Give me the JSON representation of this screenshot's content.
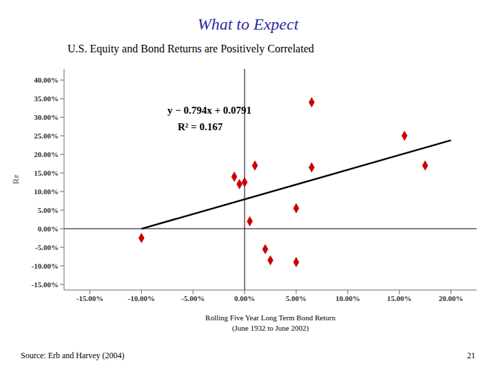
{
  "chart_data": {
    "type": "scatter",
    "title": "What to Expect",
    "title_color": "#2b2b9e",
    "subtitle": "U.S. Equity and Bond Returns are Positively Correlated",
    "x_label": [
      "Rolling Five Year Long Term Bond Return",
      "(June 1932 to June 2002)"
    ],
    "y_label": "Re",
    "source": "Source: Erb and Harvey (2004)",
    "page_number": "21",
    "annotations": [
      "y − 0.794x + 0.0791",
      "R² = 0.167"
    ],
    "points": {
      "x": [
        -0.1,
        -0.01,
        -0.005,
        0.0,
        0.005,
        0.01,
        0.02,
        0.025,
        0.05,
        0.05,
        0.065,
        0.065,
        0.155,
        0.175
      ],
      "values": [
        -0.025,
        0.14,
        0.12,
        0.125,
        0.02,
        0.17,
        -0.055,
        -0.085,
        0.055,
        -0.09,
        0.34,
        0.165,
        0.25,
        0.17
      ],
      "color": "#cc0000",
      "marker": "diamond"
    },
    "regression_line": {
      "x": [
        -0.1,
        0.2
      ],
      "values": [
        -0.0003,
        0.2379
      ],
      "color": "#000000",
      "line_style": "solid"
    },
    "reference_lines": {
      "x": [
        0
      ],
      "y": [
        0
      ]
    },
    "xlim": [
      -0.175,
      0.225
    ],
    "ylim": [
      -0.165,
      0.43
    ],
    "xticks": [
      {
        "value": -0.15,
        "label": "-15.00%"
      },
      {
        "value": -0.1,
        "label": "-10.00%"
      },
      {
        "value": -0.05,
        "label": "-5.00%"
      },
      {
        "value": 0.0,
        "label": "0.00%"
      },
      {
        "value": 0.05,
        "label": "5.00%"
      },
      {
        "value": 0.1,
        "label": "10.00%"
      },
      {
        "value": 0.15,
        "label": "15.00%"
      },
      {
        "value": 0.2,
        "label": "20.00%"
      }
    ],
    "yticks": [
      {
        "value": -0.15,
        "label": "-15.00%"
      },
      {
        "value": -0.1,
        "label": "-10.00%"
      },
      {
        "value": -0.05,
        "label": "-5.00%"
      },
      {
        "value": 0.0,
        "label": "0.00%"
      },
      {
        "value": 0.05,
        "label": "5.00%"
      },
      {
        "value": 0.1,
        "label": "10.00%"
      },
      {
        "value": 0.15,
        "label": "15.00%"
      },
      {
        "value": 0.2,
        "label": "20.00%"
      },
      {
        "value": 0.25,
        "label": "25.00%"
      },
      {
        "value": 0.3,
        "label": "30.00%"
      },
      {
        "value": 0.35,
        "label": "35.00%"
      },
      {
        "value": 0.4,
        "label": "40.00%"
      }
    ],
    "grid": false
  }
}
